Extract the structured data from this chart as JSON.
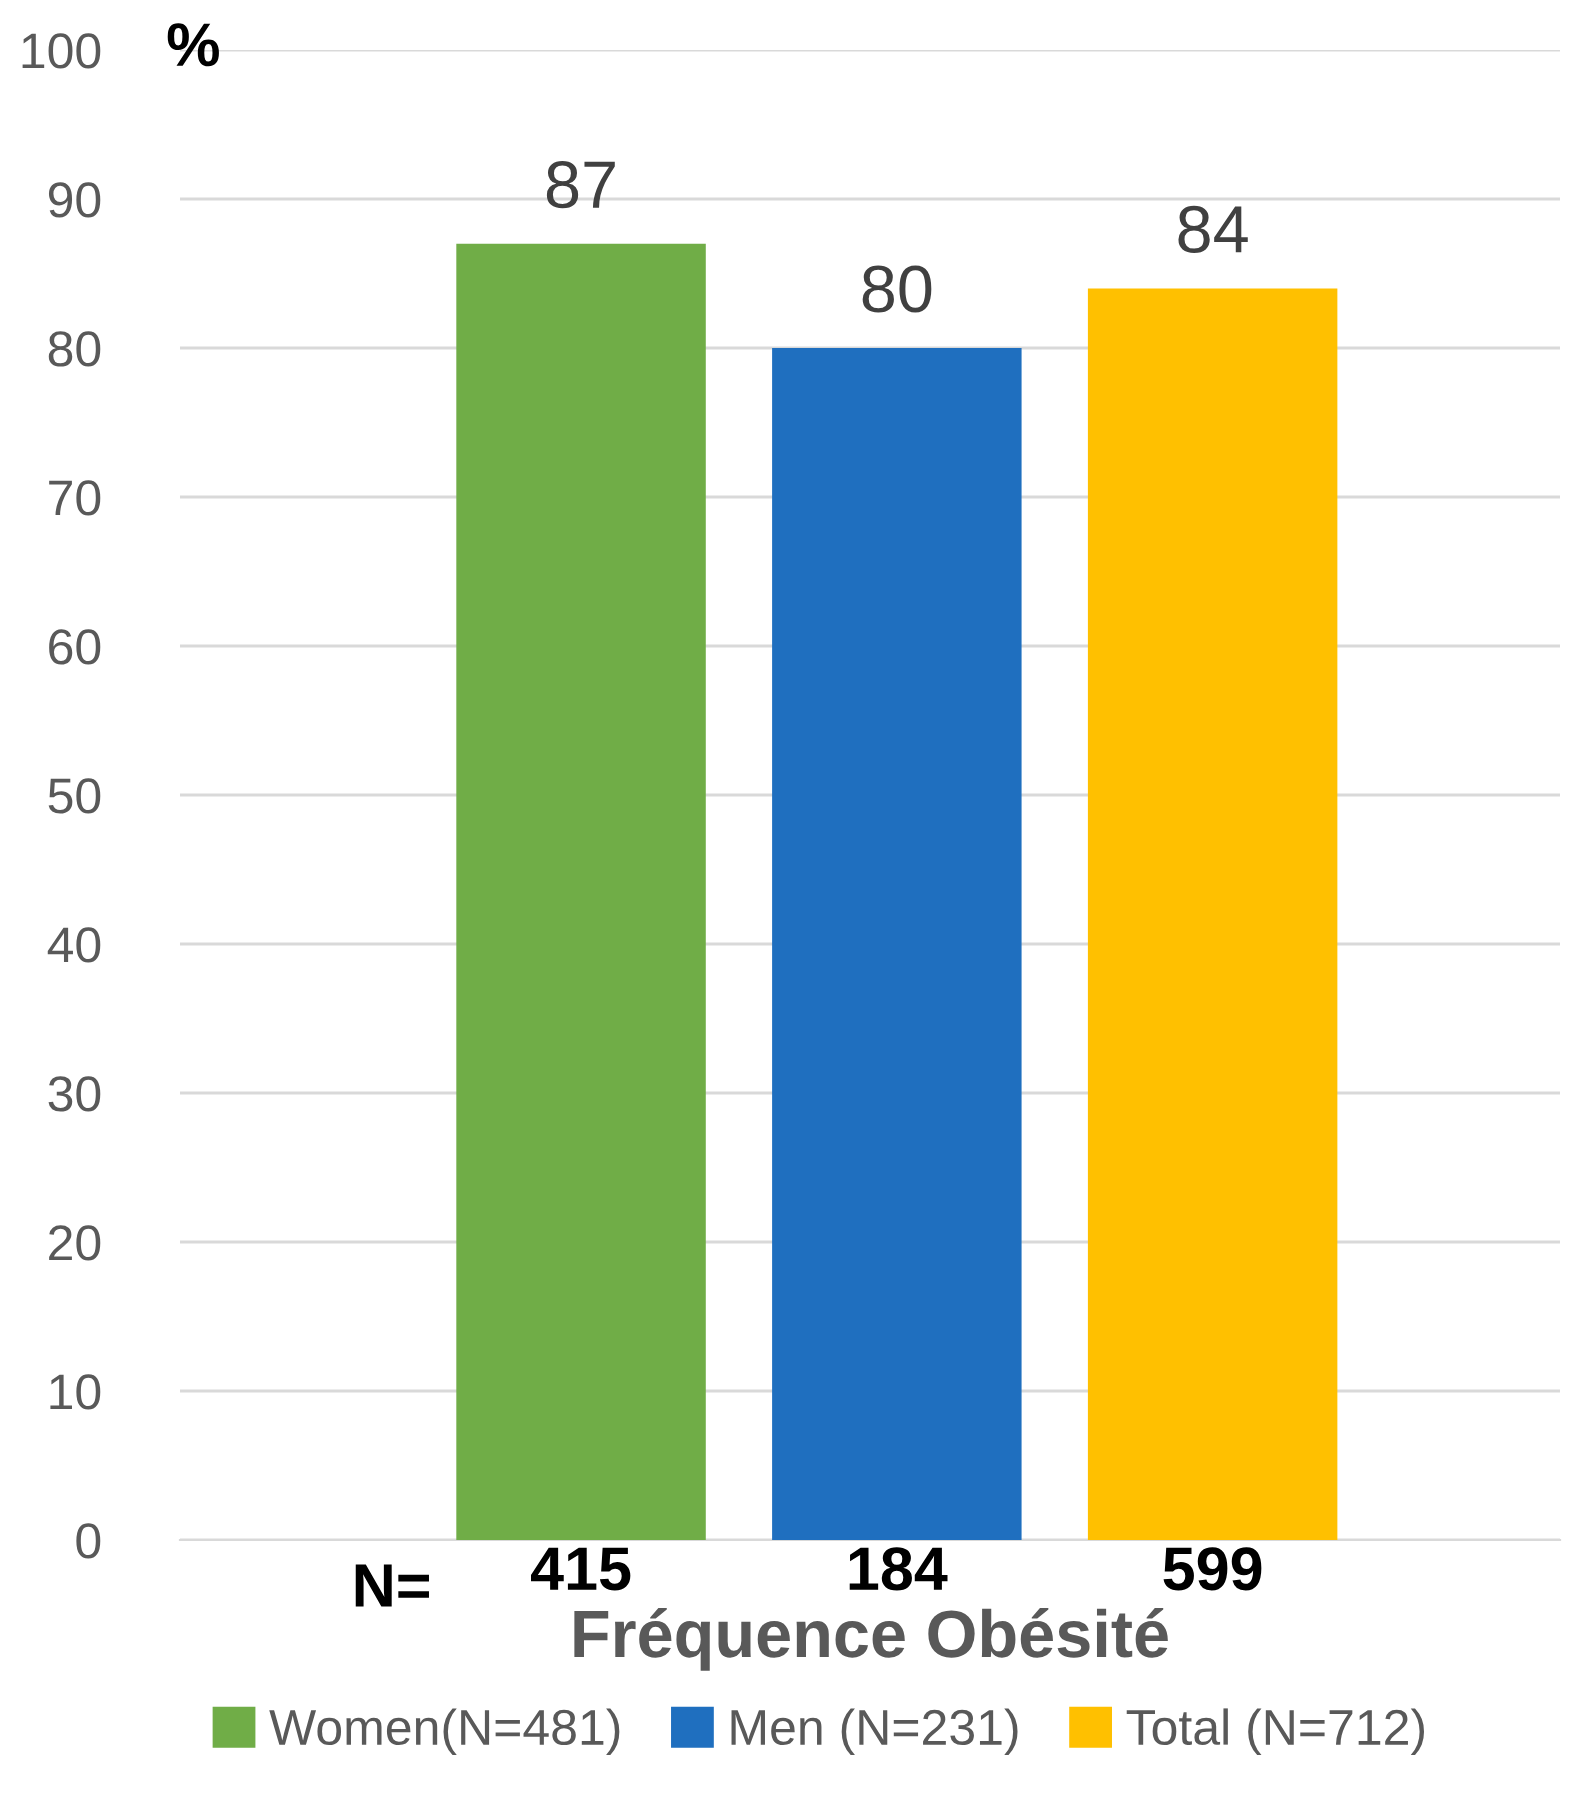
{
  "chart_data": {
    "type": "bar",
    "categories": [
      "415",
      "184",
      "599"
    ],
    "series": [
      {
        "name": "Women(N=481)",
        "color": "#70ad47",
        "values": [
          87,
          null,
          null
        ]
      },
      {
        "name": "Men (N=231)",
        "color": "#1f6fbf",
        "values": [
          null,
          80,
          null
        ]
      },
      {
        "name": "Total (N=712)",
        "color": "#ffc000",
        "values": [
          null,
          null,
          84
        ]
      }
    ],
    "xlabel": "Fréquence Obésité",
    "ylabel": "%",
    "annotations": [
      "N="
    ],
    "ylim": [
      0,
      100
    ],
    "yticks": [
      0,
      10,
      20,
      30,
      40,
      50,
      60,
      70,
      80,
      90,
      100
    ],
    "grid": "y",
    "legend": "bottom",
    "data_labels": true
  }
}
